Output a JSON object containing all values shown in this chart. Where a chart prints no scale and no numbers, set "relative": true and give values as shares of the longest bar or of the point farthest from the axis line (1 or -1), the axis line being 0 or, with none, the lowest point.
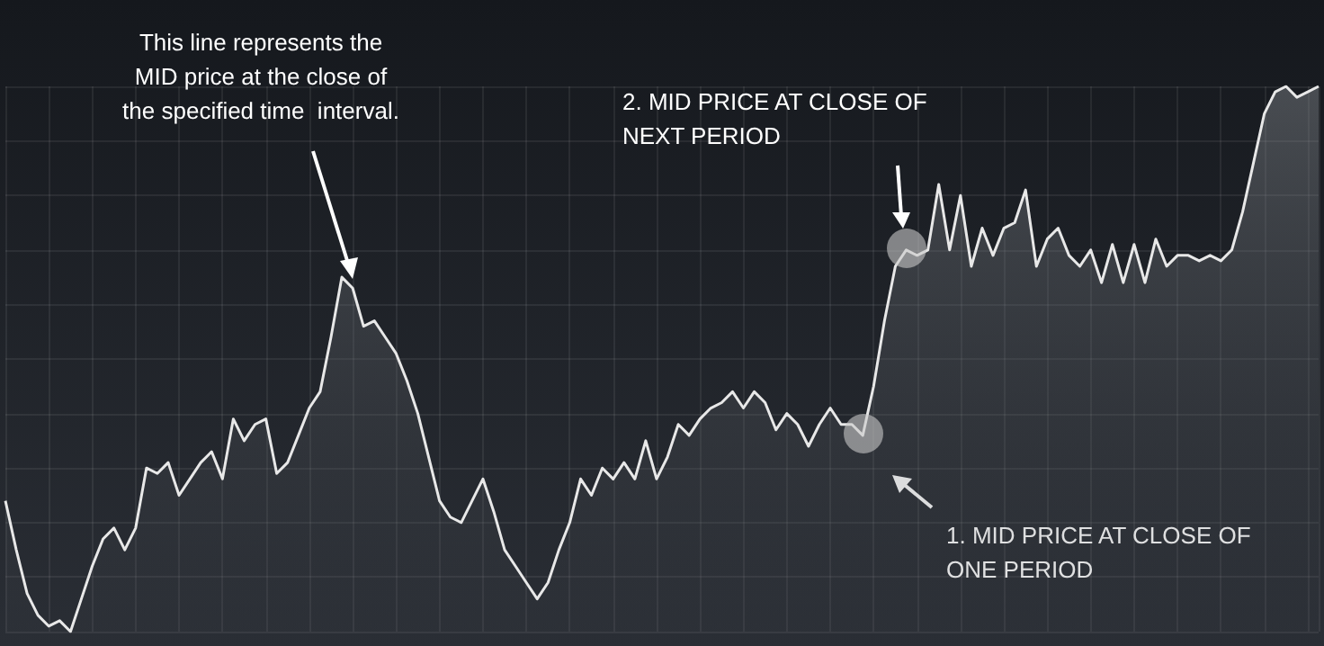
{
  "chart_data": {
    "type": "area",
    "relative": true,
    "grid": true,
    "marker": "none",
    "line_style": "solid",
    "categories": [
      null,
      null,
      null,
      null,
      null,
      null,
      null,
      null,
      null,
      null,
      null,
      null,
      null,
      null,
      null,
      null,
      null,
      null,
      null,
      null,
      null,
      null,
      null,
      null,
      null,
      null,
      null,
      null,
      null,
      null,
      null,
      null,
      null,
      null,
      null,
      null,
      null,
      null,
      null,
      null,
      null,
      null,
      null,
      null,
      null,
      null,
      null,
      null,
      null,
      null,
      null,
      null,
      null,
      null,
      null,
      null,
      null,
      null,
      null,
      null,
      null,
      null,
      null,
      null,
      null,
      null,
      null,
      null,
      null,
      null,
      null,
      null,
      null,
      null,
      null,
      null,
      null,
      null,
      null,
      null,
      null,
      null,
      null,
      null,
      null,
      null,
      null,
      null,
      null,
      null,
      null,
      null,
      null,
      null,
      null,
      null,
      null,
      null,
      null,
      null,
      null,
      null,
      null,
      null,
      null,
      null,
      null,
      null,
      null,
      null,
      null,
      null,
      null,
      null,
      null,
      null,
      null,
      null,
      null,
      null,
      null,
      null
    ],
    "series": [
      {
        "color": "#e8e8e8",
        "values": [
          0.24,
          0.15,
          0.07,
          0.03,
          0.01,
          0.02,
          0,
          0.06,
          0.12,
          0.17,
          0.19,
          0.15,
          0.19,
          0.3,
          0.29,
          0.31,
          0.25,
          0.28,
          0.31,
          0.33,
          0.28,
          0.39,
          0.35,
          0.38,
          0.39,
          0.29,
          0.31,
          0.36,
          0.41,
          0.44,
          0.54,
          0.65,
          0.63,
          0.56,
          0.57,
          0.54,
          0.51,
          0.46,
          0.4,
          0.32,
          0.24,
          0.21,
          0.2,
          0.24,
          0.28,
          0.22,
          0.15,
          0.12,
          0.09,
          0.06,
          0.09,
          0.15,
          0.2,
          0.28,
          0.25,
          0.3,
          0.28,
          0.31,
          0.28,
          0.35,
          0.28,
          0.32,
          0.38,
          0.36,
          0.39,
          0.41,
          0.42,
          0.44,
          0.41,
          0.44,
          0.42,
          0.37,
          0.4,
          0.38,
          0.34,
          0.38,
          0.41,
          0.38,
          0.38,
          0.36,
          0.45,
          0.57,
          0.67,
          0.7,
          0.69,
          0.7,
          0.82,
          0.7,
          0.8,
          0.67,
          0.74,
          0.69,
          0.74,
          0.75,
          0.81,
          0.67,
          0.72,
          0.74,
          0.69,
          0.67,
          0.7,
          0.64,
          0.71,
          0.64,
          0.71,
          0.64,
          0.72,
          0.67,
          0.69,
          0.69,
          0.68,
          0.69,
          0.68,
          0.7,
          0.77,
          0.86,
          0.95,
          0.99,
          1,
          0.98,
          0.99,
          1
        ]
      }
    ],
    "annotations": [
      "This line represents the\nMID price at the close of\nthe specified time  interval.",
      "2. MID PRICE AT CLOSE OF\nNEXT PERIOD",
      "1. MID PRICE AT CLOSE OF\nONE PERIOD"
    ]
  }
}
